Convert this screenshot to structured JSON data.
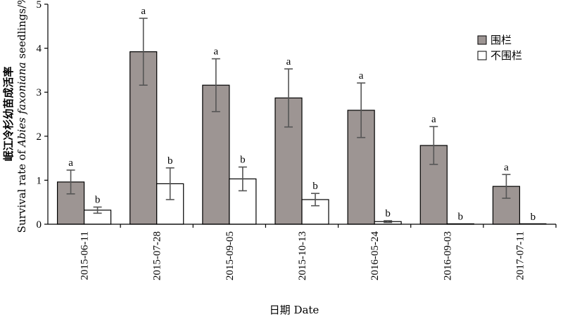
{
  "chart_data": {
    "type": "bar",
    "categories": [
      "2015-06-11",
      "2015-07-28",
      "2015-09-05",
      "2015-10-13",
      "2016-05-24",
      "2016-09-03",
      "2017-07-11"
    ],
    "series": [
      {
        "name": "围栏",
        "color": "#9d9593",
        "values": [
          0.96,
          3.92,
          3.16,
          2.87,
          2.59,
          1.79,
          0.86
        ],
        "errors": [
          0.27,
          0.76,
          0.6,
          0.66,
          0.62,
          0.43,
          0.27
        ],
        "labels": [
          "a",
          "a",
          "a",
          "a",
          "a",
          "a",
          "a"
        ]
      },
      {
        "name": "不围栏",
        "color": "#ffffff",
        "values": [
          0.32,
          0.92,
          1.03,
          0.56,
          0.06,
          0.01,
          0.0
        ],
        "errors": [
          0.07,
          0.36,
          0.27,
          0.14,
          0.02,
          0.0,
          0.0
        ],
        "labels": [
          "b",
          "b",
          "b",
          "b",
          "b",
          "b",
          "b"
        ]
      }
    ],
    "xlabel": "日期 Date",
    "ylabel_cn": "岷江冷杉幼苗成活率",
    "ylabel_en_1": "Survival rate of ",
    "ylabel_en_species": "Abies faxoniana",
    "ylabel_en_2": " seedlings/%",
    "ylim": [
      0,
      5
    ],
    "yticks": [
      "0",
      "1",
      "2",
      "3",
      "4",
      "5"
    ],
    "grid": false,
    "legend_position": "top-right"
  }
}
